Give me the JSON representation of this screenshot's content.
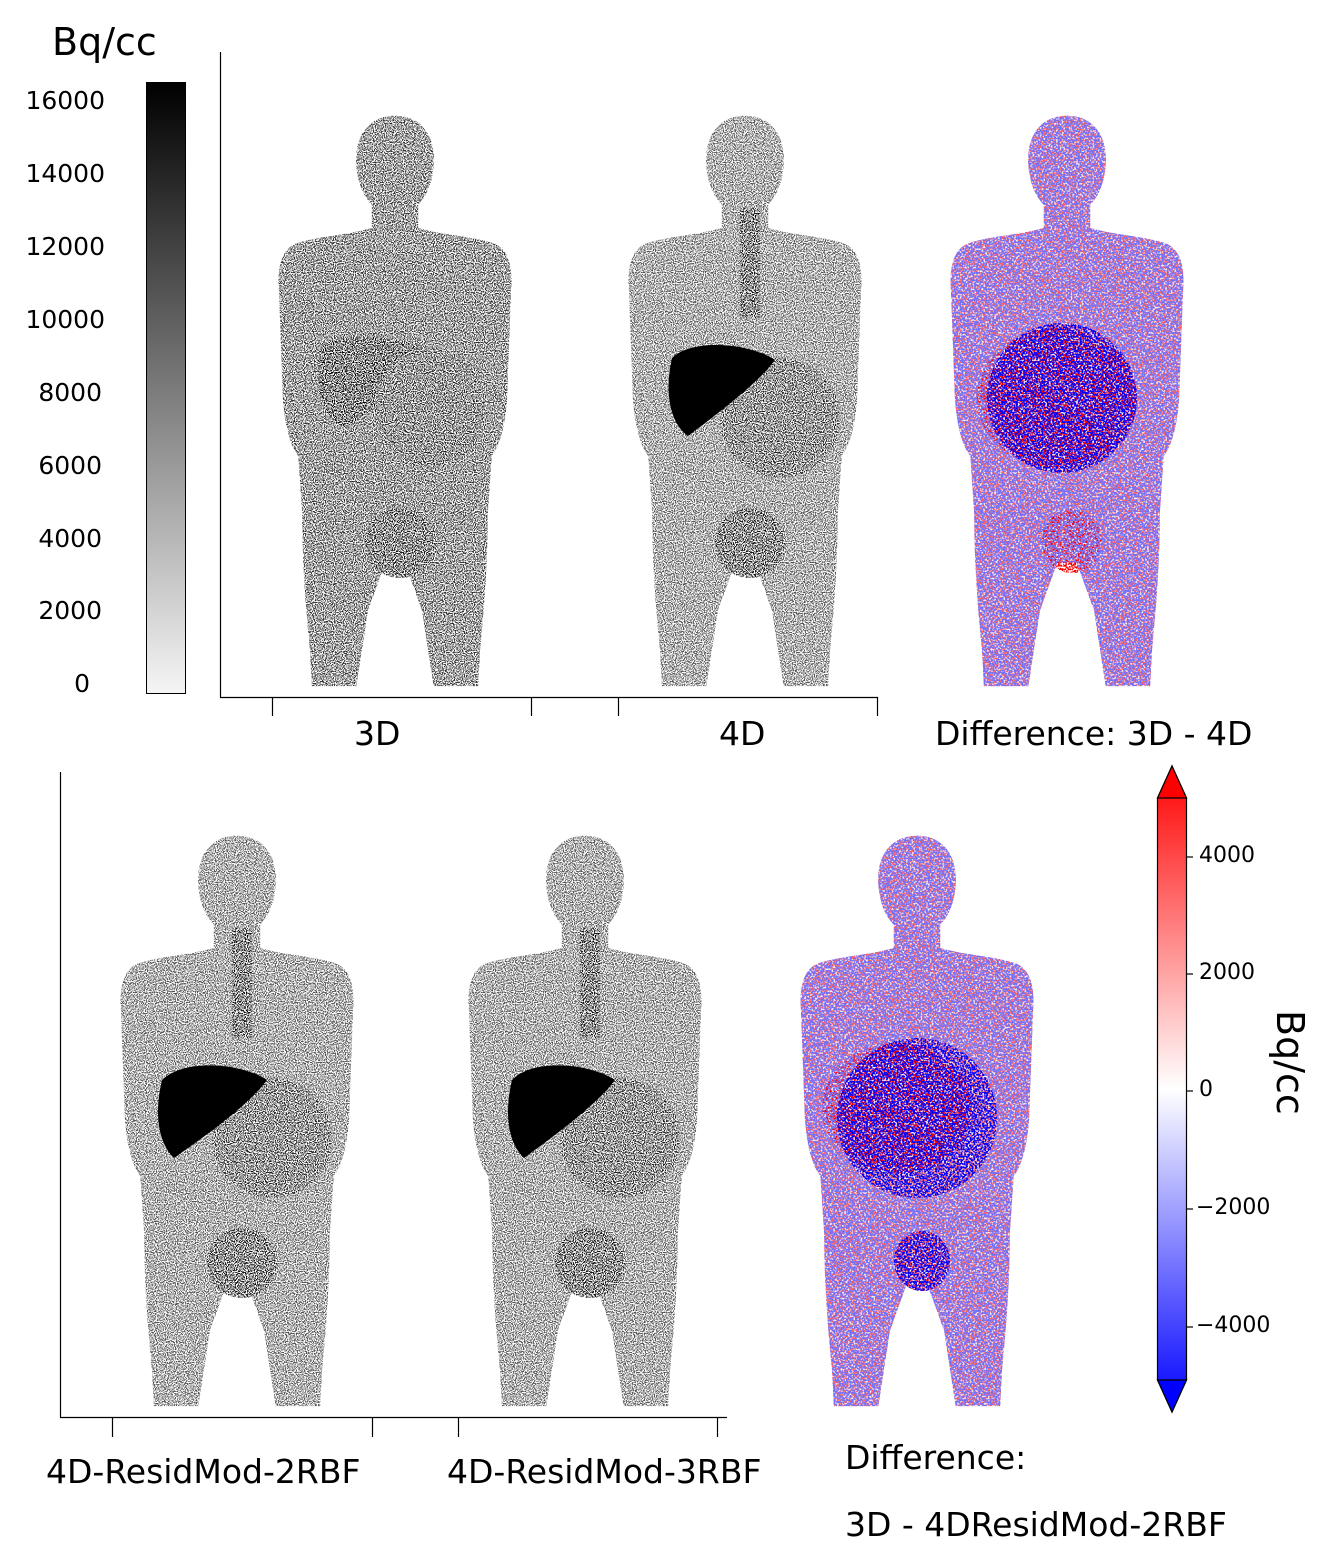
{
  "gray_colorbar": {
    "unit_label": "Bq/cc",
    "ticks": [
      "16000",
      "14000",
      "12000",
      "10000",
      "8000",
      "6000",
      "4000",
      "2000",
      "0"
    ],
    "colors": {
      "max": "#000000",
      "min": "#ffffff"
    }
  },
  "top_panels": {
    "labels": [
      "3D",
      "4D",
      "Difference: 3D - 4D"
    ]
  },
  "bottom_panels": {
    "labels": [
      "4D-ResidMod-2RBF",
      "4D-ResidMod-3RBF"
    ],
    "difference_label_line1": "Difference:",
    "difference_label_line2": "3D - 4DResidMod-2RBF"
  },
  "diverging_colorbar": {
    "unit_label": "Bq/cc",
    "ticks": [
      "4000",
      "2000",
      "0",
      "−2000",
      "−4000"
    ],
    "colors": {
      "positive": "#ff0000",
      "zero": "#ffffff",
      "negative": "#0000ff"
    }
  },
  "images": {
    "top_3d": "pet-maximum-intensity-projection-3d",
    "top_4d": "pet-maximum-intensity-projection-4d",
    "top_diff": "difference-map-3d-minus-4d",
    "bottom_2rbf": "pet-projection-4d-residmod-2rbf",
    "bottom_3rbf": "pet-projection-4d-residmod-3rbf",
    "bottom_diff": "difference-map-3d-minus-4dresidmod-2rbf"
  }
}
